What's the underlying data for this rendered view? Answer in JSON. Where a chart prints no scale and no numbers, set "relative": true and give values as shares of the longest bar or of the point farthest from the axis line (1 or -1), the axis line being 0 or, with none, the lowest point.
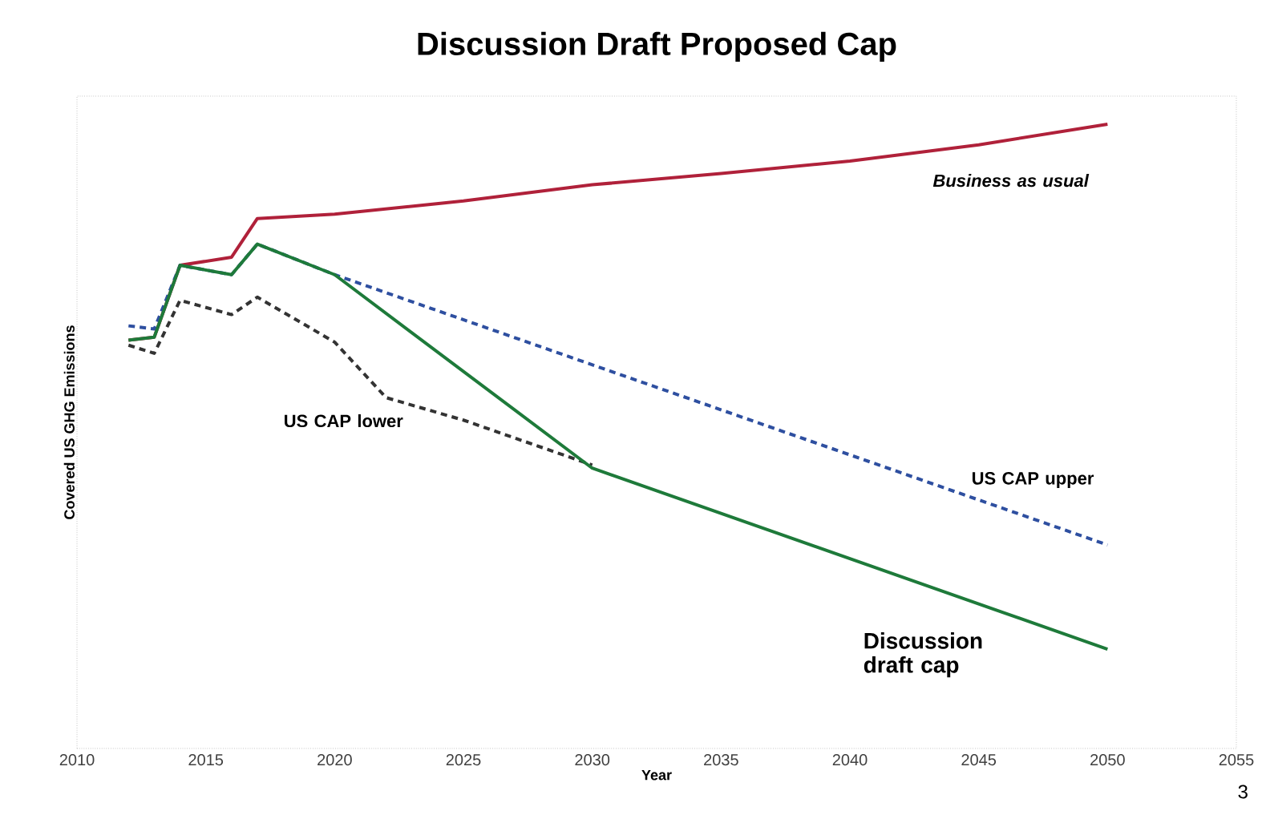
{
  "chart_data": {
    "type": "line",
    "title": "Discussion Draft Proposed Cap",
    "xlabel": "Year",
    "ylabel": "Covered US GHG Emissions",
    "relative": true,
    "xlim": [
      2010,
      2055
    ],
    "xticks": [
      2010,
      2015,
      2020,
      2025,
      2030,
      2035,
      2040,
      2045,
      2050,
      2055
    ],
    "grid": false,
    "series": [
      {
        "name": "Business as usual",
        "color": "#b0213a",
        "line_style": "solid",
        "x": [
          2012,
          2013,
          2014,
          2016,
          2017,
          2020,
          2025,
          2030,
          2035,
          2040,
          2045,
          2050
        ],
        "values": [
          0.654,
          0.659,
          0.774,
          0.787,
          0.849,
          0.856,
          0.877,
          0.903,
          0.921,
          0.941,
          0.967,
          1
        ]
      },
      {
        "name": "US CAP upper",
        "color": "#2e4fa0",
        "line_style": "dashed",
        "x": [
          2012,
          2013,
          2014,
          2016,
          2017,
          2020,
          2050
        ],
        "values": [
          0.677,
          0.672,
          0.774,
          0.759,
          0.808,
          0.759,
          0.326
        ]
      },
      {
        "name": "US CAP lower",
        "color": "#333333",
        "line_style": "dashed",
        "x": [
          2012,
          2013,
          2014,
          2016,
          2017,
          2020,
          2022,
          2025,
          2030
        ],
        "values": [
          0.646,
          0.633,
          0.718,
          0.695,
          0.723,
          0.651,
          0.562,
          0.526,
          0.454
        ]
      },
      {
        "name": "Discussion draft cap",
        "color": "#1e7a3a",
        "line_style": "solid",
        "x": [
          2012,
          2013,
          2014,
          2016,
          2017,
          2020,
          2030,
          2050
        ],
        "values": [
          0.654,
          0.659,
          0.774,
          0.759,
          0.808,
          0.759,
          0.449,
          0.159
        ]
      }
    ],
    "annotations": [
      "3"
    ]
  }
}
